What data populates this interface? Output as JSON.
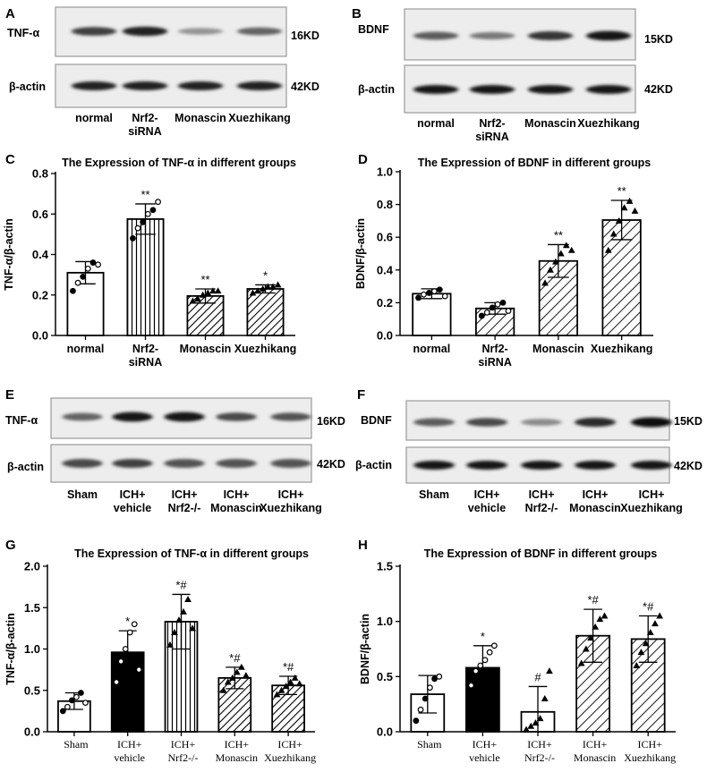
{
  "panels": {
    "A": {
      "letter": "A",
      "protein": "TNF-α",
      "protein_kd": "16KD",
      "control": "β-actin",
      "control_kd": "42KD",
      "lanes": [
        [
          "normal"
        ],
        [
          "Nrf2-",
          "siRNA"
        ],
        [
          "Monascin"
        ],
        [
          "Xuezhikang"
        ]
      ],
      "band_intensity": [
        0.75,
        0.9,
        0.3,
        0.55
      ],
      "control_intensity": [
        0.9,
        0.9,
        0.9,
        0.9
      ]
    },
    "B": {
      "letter": "B",
      "protein": "BDNF",
      "protein_kd": "15KD",
      "control": "β-actin",
      "control_kd": "42KD",
      "lanes": [
        [
          "normal"
        ],
        [
          "Nrf2-",
          "siRNA"
        ],
        [
          "Monascin"
        ],
        [
          "Xuezhikang"
        ]
      ],
      "band_intensity": [
        0.6,
        0.45,
        0.8,
        0.95
      ],
      "control_intensity": [
        0.95,
        0.95,
        0.95,
        0.95
      ]
    },
    "E": {
      "letter": "E",
      "protein": "TNF-α",
      "protein_kd": "16KD",
      "control": "β-actin",
      "control_kd": "42KD",
      "lanes": [
        [
          "Sham"
        ],
        [
          "ICH+",
          "vehicle"
        ],
        [
          "ICH+",
          "Nrf2-/-"
        ],
        [
          "ICH+",
          "Monascin"
        ],
        [
          "ICH+",
          "Xuezhikang"
        ]
      ],
      "band_intensity": [
        0.55,
        0.95,
        0.95,
        0.7,
        0.65
      ],
      "control_intensity": [
        0.7,
        0.75,
        0.65,
        0.65,
        0.65
      ]
    },
    "F": {
      "letter": "F",
      "protein": "BDNF",
      "protein_kd": "15KD",
      "control": "β-actin",
      "control_kd": "42KD",
      "lanes": [
        [
          "Sham"
        ],
        [
          "ICH+",
          "vehicle"
        ],
        [
          "ICH+",
          "Nrf2-/-"
        ],
        [
          "ICH+",
          "Monascin"
        ],
        [
          "ICH+",
          "Xuezhikang"
        ]
      ],
      "band_intensity": [
        0.6,
        0.7,
        0.35,
        0.85,
        1.0
      ],
      "control_intensity": [
        0.95,
        0.95,
        0.95,
        0.95,
        0.95
      ]
    }
  },
  "chart_data": [
    {
      "panel": "C",
      "type": "bar",
      "title": "The Expression of TNF-α in different groups",
      "ylabel": "TNF-α/β-actin",
      "ylim": [
        0,
        0.8
      ],
      "yticks": [
        "0.0",
        "0.2",
        "0.4",
        "0.6",
        "0.8"
      ],
      "categories": [
        [
          "normal"
        ],
        [
          "Nrf2-",
          "siRNA"
        ],
        [
          "Monascin"
        ],
        [
          "Xuezhikang"
        ]
      ],
      "values": [
        0.31,
        0.575,
        0.195,
        0.23
      ],
      "errors": [
        0.055,
        0.075,
        0.035,
        0.02
      ],
      "fills": [
        "white",
        "vertical",
        "diagonal-dense",
        "diagonal-dense"
      ],
      "points": [
        [
          0.22,
          0.26,
          0.29,
          0.33,
          0.36,
          0.35
        ],
        [
          0.48,
          0.53,
          0.56,
          0.6,
          0.62,
          0.66
        ],
        [
          0.17,
          0.18,
          0.2,
          0.21,
          0.22,
          0.22
        ],
        [
          0.21,
          0.22,
          0.23,
          0.24,
          0.24,
          0.25
        ]
      ],
      "annotations": [
        "",
        "**",
        "**",
        "*"
      ]
    },
    {
      "panel": "D",
      "type": "bar",
      "title": "The Expression of BDNF in different groups",
      "ylabel": "BDNF/β-actin",
      "ylim": [
        0,
        1.0
      ],
      "yticks": [
        "0.0",
        "0.2",
        "0.4",
        "0.6",
        "0.8",
        "1.0"
      ],
      "categories": [
        [
          "normal"
        ],
        [
          "Nrf2-",
          "siRNA"
        ],
        [
          "Monascin"
        ],
        [
          "Xuezhikang"
        ]
      ],
      "values": [
        0.255,
        0.165,
        0.455,
        0.705
      ],
      "errors": [
        0.03,
        0.035,
        0.1,
        0.12
      ],
      "fills": [
        "white",
        "diagonal-sparse",
        "diagonal-sparse",
        "diagonal-sparse"
      ],
      "points": [
        [
          0.23,
          0.25,
          0.26,
          0.27,
          0.28,
          0.24
        ],
        [
          0.12,
          0.14,
          0.17,
          0.19,
          0.2,
          0.15
        ],
        [
          0.32,
          0.4,
          0.45,
          0.5,
          0.55,
          0.52
        ],
        [
          0.52,
          0.62,
          0.7,
          0.78,
          0.82,
          0.76
        ]
      ],
      "annotations": [
        "",
        "",
        "**",
        "**"
      ]
    },
    {
      "panel": "G",
      "type": "bar",
      "title": "The Expression of TNF-α in different groups",
      "ylabel": "TNF-α/β-actin",
      "ylim": [
        0,
        2.0
      ],
      "yticks": [
        "0.0",
        "0.5",
        "1.0",
        "1.5",
        "2.0"
      ],
      "categories": [
        [
          "Sham"
        ],
        [
          "ICH+",
          "vehicle"
        ],
        [
          "ICH+",
          "Nrf2-/-"
        ],
        [
          "ICH+",
          "Monascin"
        ],
        [
          "ICH+",
          "Xuezhikang"
        ]
      ],
      "values": [
        0.37,
        0.96,
        1.33,
        0.65,
        0.56
      ],
      "errors": [
        0.1,
        0.26,
        0.33,
        0.13,
        0.11
      ],
      "fills": [
        "white",
        "black",
        "vertical",
        "diagonal-dense",
        "diagonal-dense"
      ],
      "points": [
        [
          0.25,
          0.3,
          0.38,
          0.42,
          0.47,
          0.35
        ],
        [
          0.6,
          0.85,
          1.0,
          1.2,
          1.3,
          0.75
        ],
        [
          1.05,
          1.2,
          1.35,
          1.45,
          1.6,
          1.25
        ],
        [
          0.5,
          0.6,
          0.65,
          0.72,
          0.78,
          0.68
        ],
        [
          0.45,
          0.5,
          0.55,
          0.6,
          0.65,
          0.58
        ]
      ],
      "annotations": [
        "",
        "*",
        "*#",
        "*#",
        "*#"
      ]
    },
    {
      "panel": "H",
      "type": "bar",
      "title": "The Expression of BDNF in different groups",
      "ylabel": "BDNF/β-actin",
      "ylim": [
        0,
        1.5
      ],
      "yticks": [
        "0.0",
        "0.5",
        "1.0",
        "1.5"
      ],
      "categories": [
        [
          "Sham"
        ],
        [
          "ICH+",
          "vehicle"
        ],
        [
          "ICH+",
          "Nrf2-/-"
        ],
        [
          "ICH+",
          "Monascin"
        ],
        [
          "ICH+",
          "Xuezhikang"
        ]
      ],
      "values": [
        0.34,
        0.58,
        0.18,
        0.87,
        0.84
      ],
      "errors": [
        0.17,
        0.2,
        0.23,
        0.24,
        0.21
      ],
      "fills": [
        "white",
        "black",
        "white",
        "diagonal-sparse",
        "diagonal-sparse"
      ],
      "points": [
        [
          0.1,
          0.2,
          0.3,
          0.4,
          0.48,
          0.5
        ],
        [
          0.42,
          0.55,
          0.6,
          0.65,
          0.72,
          0.78
        ],
        [
          0.02,
          0.05,
          0.08,
          0.12,
          0.3,
          0.55
        ],
        [
          0.62,
          0.75,
          0.85,
          0.95,
          1.02,
          1.05
        ],
        [
          0.6,
          0.72,
          0.8,
          0.9,
          0.98,
          1.05
        ]
      ],
      "annotations": [
        "",
        "*",
        "#",
        "*#",
        "*#"
      ]
    }
  ]
}
